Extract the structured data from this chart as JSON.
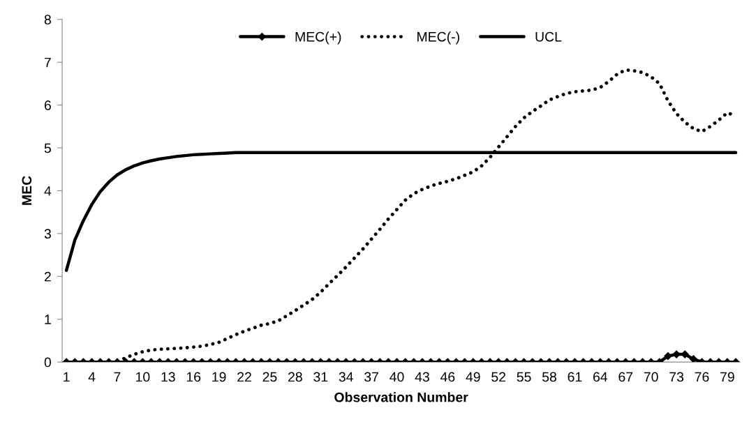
{
  "chart_data": {
    "type": "line",
    "xlabel": "Observation Number",
    "ylabel": "MEC",
    "categories": [
      "1",
      null,
      null,
      "4",
      null,
      null,
      "7",
      null,
      null,
      "10",
      null,
      null,
      "13",
      null,
      null,
      "16",
      null,
      null,
      "19",
      null,
      null,
      "22",
      null,
      null,
      "25",
      null,
      null,
      "28",
      null,
      null,
      "31",
      null,
      null,
      "34",
      null,
      null,
      "37",
      null,
      null,
      "40",
      null,
      null,
      "43",
      null,
      null,
      "46",
      null,
      null,
      "49",
      null,
      null,
      "52",
      null,
      null,
      "55",
      null,
      null,
      "58",
      null,
      null,
      "61",
      null,
      null,
      "64",
      null,
      null,
      "67",
      null,
      null,
      "70",
      null,
      null,
      "73",
      null,
      null,
      "76",
      null,
      null,
      "79",
      null
    ],
    "ylim": [
      0,
      8
    ],
    "yticks": [
      0,
      1,
      2,
      3,
      4,
      5,
      6,
      7,
      8
    ],
    "grid": false,
    "legend": "top",
    "series": [
      {
        "name": "MEC(+)",
        "color": "#000000",
        "marker": "diamond",
        "line_style": "solid",
        "values": [
          0,
          0,
          0,
          0,
          0,
          0,
          0,
          0,
          0,
          0,
          0,
          0,
          0,
          0,
          0,
          0,
          0,
          0,
          0,
          0,
          0,
          0,
          0,
          0,
          0,
          0,
          0,
          0,
          0,
          0,
          0,
          0,
          0,
          0,
          0,
          0,
          0,
          0,
          0,
          0,
          0,
          0,
          0,
          0,
          0,
          0,
          0,
          0,
          0,
          0,
          0,
          0,
          0,
          0,
          0,
          0,
          0,
          0,
          0,
          0,
          0,
          0,
          0,
          0,
          0,
          0,
          0,
          0,
          0,
          0,
          0,
          0.14,
          0.18,
          0.18,
          0.07,
          0,
          0,
          0,
          0,
          0
        ]
      },
      {
        "name": "MEC(-)",
        "color": "#000000",
        "marker": "none",
        "line_style": "dotted",
        "values": [
          0,
          0,
          0,
          0,
          0,
          0,
          0,
          0.1,
          0.18,
          0.24,
          0.28,
          0.3,
          0.31,
          0.32,
          0.33,
          0.35,
          0.37,
          0.41,
          0.46,
          0.55,
          0.64,
          0.72,
          0.79,
          0.86,
          0.9,
          0.96,
          1.08,
          1.2,
          1.33,
          1.46,
          1.63,
          1.83,
          2.02,
          2.22,
          2.43,
          2.64,
          2.87,
          3.1,
          3.34,
          3.56,
          3.78,
          3.93,
          4.03,
          4.11,
          4.17,
          4.22,
          4.28,
          4.36,
          4.44,
          4.58,
          4.78,
          5.02,
          5.26,
          5.5,
          5.7,
          5.85,
          5.98,
          6.12,
          6.2,
          6.27,
          6.31,
          6.33,
          6.35,
          6.41,
          6.55,
          6.72,
          6.82,
          6.8,
          6.76,
          6.66,
          6.5,
          6.1,
          5.8,
          5.6,
          5.45,
          5.38,
          5.5,
          5.65,
          5.82,
          5.75
        ]
      },
      {
        "name": "UCL",
        "color": "#000000",
        "marker": "none",
        "line_style": "solid",
        "values": [
          2.14,
          2.85,
          3.3,
          3.68,
          3.98,
          4.2,
          4.37,
          4.49,
          4.58,
          4.65,
          4.7,
          4.74,
          4.77,
          4.8,
          4.82,
          4.84,
          4.85,
          4.86,
          4.87,
          4.88,
          4.89,
          4.89,
          4.89,
          4.89,
          4.89,
          4.89,
          4.89,
          4.89,
          4.89,
          4.89,
          4.89,
          4.89,
          4.89,
          4.89,
          4.89,
          4.89,
          4.89,
          4.89,
          4.89,
          4.89,
          4.89,
          4.89,
          4.89,
          4.89,
          4.89,
          4.89,
          4.89,
          4.89,
          4.89,
          4.89,
          4.89,
          4.89,
          4.89,
          4.89,
          4.89,
          4.89,
          4.89,
          4.89,
          4.89,
          4.89,
          4.89,
          4.89,
          4.89,
          4.89,
          4.89,
          4.89,
          4.89,
          4.89,
          4.89,
          4.89,
          4.89,
          4.89,
          4.89,
          4.89,
          4.89,
          4.89,
          4.89,
          4.89,
          4.89,
          4.89
        ]
      }
    ]
  }
}
